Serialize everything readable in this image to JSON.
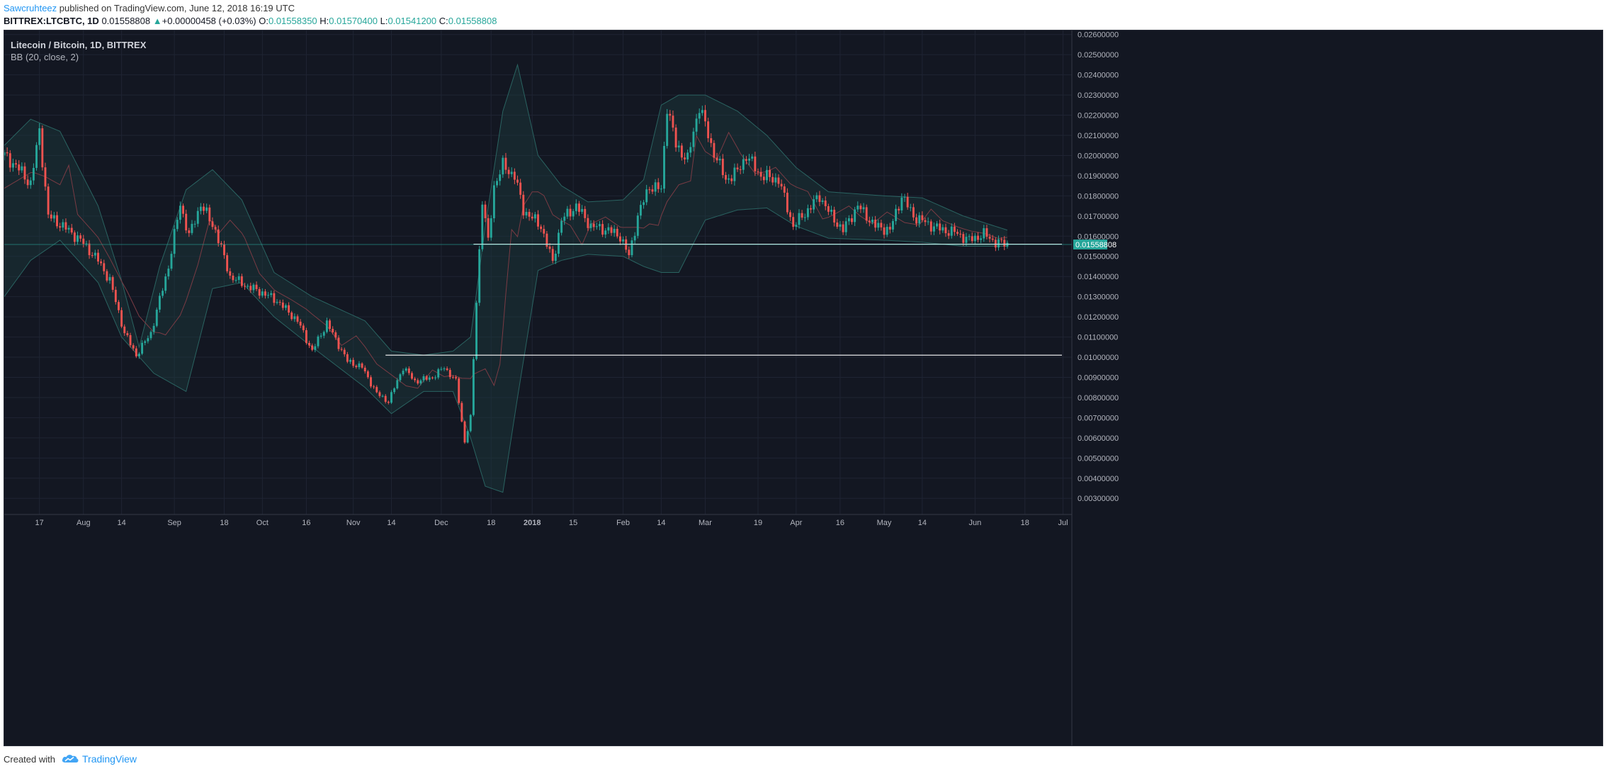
{
  "header": {
    "author": "Sawcruhteez",
    "published_text": "published on TradingView.com, June 12, 2018 16:19 UTC",
    "symbol": "BITTREX:LTCBTC, 1D",
    "last": "0.01558808",
    "change_arrow": "▲",
    "change": "+0.00000458 (+0.03%)",
    "o_label": "O:",
    "o_value": "0.01558350",
    "h_label": "H:",
    "h_value": "0.01570400",
    "l_label": "L:",
    "l_value": "0.01541200",
    "c_label": "C:",
    "c_value": "0.01558808"
  },
  "legend": {
    "title": "Litecoin / Bitcoin, 1D, BITTREX",
    "indicator": "BB (20, close, 2)"
  },
  "footer": {
    "created_with": "Created with",
    "brand": "TradingView",
    "logo_icon": "tradingview-cloud-icon"
  },
  "colors": {
    "background": "#131722",
    "grid": "#1f2433",
    "up": "#26a69a",
    "down": "#ef5350",
    "bb_fill": "#1c3b3d",
    "bb_band": "#2a6361",
    "bb_basis": "#7a3b44",
    "price_label": "#26a69a",
    "level_line": "#ffffff"
  },
  "chart_data": {
    "type": "candlestick",
    "y_axis": {
      "min": 0.0022,
      "max": 0.0262,
      "ticks": [
        "0.02600000",
        "0.02500000",
        "0.02400000",
        "0.02300000",
        "0.02200000",
        "0.02100000",
        "0.02000000",
        "0.01900000",
        "0.01800000",
        "0.01700000",
        "0.01600000",
        "0.01500000",
        "0.01400000",
        "0.01300000",
        "0.01200000",
        "0.01100000",
        "0.01000000",
        "0.00900000",
        "0.00800000",
        "0.00700000",
        "0.00600000",
        "0.00500000",
        "0.00400000",
        "0.00300000"
      ],
      "tick_values": [
        0.026,
        0.025,
        0.024,
        0.023,
        0.022,
        0.021,
        0.02,
        0.019,
        0.018,
        0.017,
        0.016,
        0.015,
        0.014,
        0.013,
        0.012,
        0.011,
        0.01,
        0.009,
        0.008,
        0.007,
        0.006,
        0.005,
        0.004,
        0.003
      ],
      "position": "right"
    },
    "x_axis": {
      "start_date": "2017-07-05",
      "end_date": "2018-07-04",
      "tick_labels": [
        "17",
        "Aug",
        "14",
        "Sep",
        "18",
        "Oct",
        "16",
        "Nov",
        "14",
        "Dec",
        "18",
        "2018",
        "15",
        "Feb",
        "14",
        "Mar",
        "19",
        "Apr",
        "16",
        "May",
        "14",
        "Jun",
        "18",
        "Jul"
      ],
      "tick_dates": [
        "2017-07-17",
        "2017-08-01",
        "2017-08-14",
        "2017-09-01",
        "2017-09-18",
        "2017-10-01",
        "2017-10-16",
        "2017-11-01",
        "2017-11-14",
        "2017-12-01",
        "2017-12-18",
        "2018-01-01",
        "2018-01-15",
        "2018-02-01",
        "2018-02-14",
        "2018-03-01",
        "2018-03-19",
        "2018-04-01",
        "2018-04-16",
        "2018-05-01",
        "2018-05-14",
        "2018-06-01",
        "2018-06-18",
        "2018-07-01"
      ],
      "bold_labels": [
        "2018"
      ]
    },
    "grid": true,
    "last_price": 0.01558808,
    "last_price_label": "0.01558808",
    "last_date": "2018-06-12",
    "horizontal_levels": [
      {
        "value": 0.0156,
        "from": "2017-12-12",
        "to": "2018-07-04"
      },
      {
        "value": 0.0101,
        "from": "2017-11-12",
        "to": "2018-07-04"
      }
    ],
    "indicator": {
      "name": "BB",
      "period": 20,
      "source": "close",
      "stddev": 2,
      "upper_keyframes": [
        [
          "2017-07-05",
          0.0205
        ],
        [
          "2017-07-14",
          0.0218
        ],
        [
          "2017-07-24",
          0.0212
        ],
        [
          "2017-08-06",
          0.0175
        ],
        [
          "2017-08-14",
          0.0138
        ],
        [
          "2017-08-20",
          0.0105
        ],
        [
          "2017-08-27",
          0.0145
        ],
        [
          "2017-09-05",
          0.0183
        ],
        [
          "2017-09-14",
          0.0193
        ],
        [
          "2017-09-24",
          0.0178
        ],
        [
          "2017-10-05",
          0.0142
        ],
        [
          "2017-10-18",
          0.013
        ],
        [
          "2017-11-05",
          0.0118
        ],
        [
          "2017-11-14",
          0.0103
        ],
        [
          "2017-11-25",
          0.0101
        ],
        [
          "2017-12-05",
          0.0103
        ],
        [
          "2017-12-11",
          0.011
        ],
        [
          "2017-12-16",
          0.0165
        ],
        [
          "2017-12-22",
          0.0222
        ],
        [
          "2017-12-27",
          0.0245
        ],
        [
          "2018-01-03",
          0.02
        ],
        [
          "2018-01-11",
          0.0185
        ],
        [
          "2018-01-20",
          0.0177
        ],
        [
          "2018-02-01",
          0.0178
        ],
        [
          "2018-02-08",
          0.0188
        ],
        [
          "2018-02-14",
          0.0225
        ],
        [
          "2018-02-20",
          0.023
        ],
        [
          "2018-03-01",
          0.023
        ],
        [
          "2018-03-12",
          0.0222
        ],
        [
          "2018-03-22",
          0.021
        ],
        [
          "2018-04-01",
          0.0194
        ],
        [
          "2018-04-12",
          0.0182
        ],
        [
          "2018-05-01",
          0.018
        ],
        [
          "2018-05-14",
          0.0179
        ],
        [
          "2018-05-28",
          0.017
        ],
        [
          "2018-06-12",
          0.0163
        ]
      ],
      "lower_keyframes": [
        [
          "2017-07-05",
          0.013
        ],
        [
          "2017-07-14",
          0.0148
        ],
        [
          "2017-07-24",
          0.0158
        ],
        [
          "2017-08-06",
          0.0137
        ],
        [
          "2017-08-14",
          0.011
        ],
        [
          "2017-08-25",
          0.0092
        ],
        [
          "2017-09-05",
          0.0083
        ],
        [
          "2017-09-14",
          0.0134
        ],
        [
          "2017-09-24",
          0.0137
        ],
        [
          "2017-10-05",
          0.012
        ],
        [
          "2017-10-18",
          0.0105
        ],
        [
          "2017-11-05",
          0.0085
        ],
        [
          "2017-11-14",
          0.0072
        ],
        [
          "2017-11-25",
          0.0083
        ],
        [
          "2017-12-05",
          0.0083
        ],
        [
          "2017-12-11",
          0.006
        ],
        [
          "2017-12-16",
          0.0036
        ],
        [
          "2017-12-22",
          0.0033
        ],
        [
          "2017-12-27",
          0.008
        ],
        [
          "2018-01-03",
          0.0143
        ],
        [
          "2018-01-11",
          0.0148
        ],
        [
          "2018-01-20",
          0.0151
        ],
        [
          "2018-02-01",
          0.015
        ],
        [
          "2018-02-08",
          0.0145
        ],
        [
          "2018-02-14",
          0.0142
        ],
        [
          "2018-02-20",
          0.0142
        ],
        [
          "2018-03-01",
          0.0168
        ],
        [
          "2018-03-12",
          0.0173
        ],
        [
          "2018-03-22",
          0.0174
        ],
        [
          "2018-04-01",
          0.0165
        ],
        [
          "2018-04-12",
          0.0159
        ],
        [
          "2018-05-01",
          0.0158
        ],
        [
          "2018-05-14",
          0.0157
        ],
        [
          "2018-05-28",
          0.0155
        ],
        [
          "2018-06-12",
          0.0155
        ]
      ]
    },
    "close_keyframes": [
      [
        "2017-07-05",
        0.02
      ],
      [
        "2017-07-09",
        0.0195
      ],
      [
        "2017-07-14",
        0.0186
      ],
      [
        "2017-07-17",
        0.0212
      ],
      [
        "2017-07-20",
        0.017
      ],
      [
        "2017-07-25",
        0.0165
      ],
      [
        "2017-07-31",
        0.0158
      ],
      [
        "2017-08-06",
        0.0148
      ],
      [
        "2017-08-10",
        0.0138
      ],
      [
        "2017-08-15",
        0.0112
      ],
      [
        "2017-08-19",
        0.0101
      ],
      [
        "2017-08-24",
        0.0112
      ],
      [
        "2017-08-30",
        0.0145
      ],
      [
        "2017-09-03",
        0.0176
      ],
      [
        "2017-09-06",
        0.016
      ],
      [
        "2017-09-10",
        0.0176
      ],
      [
        "2017-09-15",
        0.0163
      ],
      [
        "2017-09-20",
        0.014
      ],
      [
        "2017-09-26",
        0.0135
      ],
      [
        "2017-10-01",
        0.0132
      ],
      [
        "2017-10-06",
        0.0128
      ],
      [
        "2017-10-13",
        0.0118
      ],
      [
        "2017-10-18",
        0.0103
      ],
      [
        "2017-10-23",
        0.0117
      ],
      [
        "2017-10-30",
        0.0098
      ],
      [
        "2017-11-04",
        0.0095
      ],
      [
        "2017-11-09",
        0.0082
      ],
      [
        "2017-11-13",
        0.0078
      ],
      [
        "2017-11-18",
        0.0095
      ],
      [
        "2017-11-22",
        0.0088
      ],
      [
        "2017-11-28",
        0.009
      ],
      [
        "2017-12-02",
        0.0095
      ],
      [
        "2017-12-06",
        0.0088
      ],
      [
        "2017-12-09",
        0.0058
      ],
      [
        "2017-12-11",
        0.007
      ],
      [
        "2017-12-13",
        0.0128
      ],
      [
        "2017-12-15",
        0.0178
      ],
      [
        "2017-12-17",
        0.0157
      ],
      [
        "2017-12-19",
        0.0185
      ],
      [
        "2017-12-22",
        0.0195
      ],
      [
        "2017-12-26",
        0.019
      ],
      [
        "2017-12-29",
        0.0173
      ],
      [
        "2018-01-04",
        0.0165
      ],
      [
        "2018-01-08",
        0.0147
      ],
      [
        "2018-01-11",
        0.0168
      ],
      [
        "2018-01-16",
        0.0175
      ],
      [
        "2018-01-21",
        0.0165
      ],
      [
        "2018-01-27",
        0.0163
      ],
      [
        "2018-01-31",
        0.016
      ],
      [
        "2018-02-03",
        0.015
      ],
      [
        "2018-02-06",
        0.017
      ],
      [
        "2018-02-10",
        0.0185
      ],
      [
        "2018-02-14",
        0.0183
      ],
      [
        "2018-02-16",
        0.0225
      ],
      [
        "2018-02-19",
        0.0205
      ],
      [
        "2018-02-23",
        0.0198
      ],
      [
        "2018-02-27",
        0.0225
      ],
      [
        "2018-03-03",
        0.0205
      ],
      [
        "2018-03-08",
        0.0188
      ],
      [
        "2018-03-12",
        0.0192
      ],
      [
        "2018-03-15",
        0.02
      ],
      [
        "2018-03-20",
        0.019
      ],
      [
        "2018-03-26",
        0.0188
      ],
      [
        "2018-03-31",
        0.0165
      ],
      [
        "2018-04-05",
        0.0173
      ],
      [
        "2018-04-09",
        0.018
      ],
      [
        "2018-04-13",
        0.017
      ],
      [
        "2018-04-17",
        0.0163
      ],
      [
        "2018-04-22",
        0.0175
      ],
      [
        "2018-04-28",
        0.0165
      ],
      [
        "2018-05-03",
        0.0163
      ],
      [
        "2018-05-07",
        0.018
      ],
      [
        "2018-05-11",
        0.017
      ],
      [
        "2018-05-16",
        0.0166
      ],
      [
        "2018-05-21",
        0.0163
      ],
      [
        "2018-05-25",
        0.0162
      ],
      [
        "2018-05-30",
        0.0158
      ],
      [
        "2018-06-04",
        0.0161
      ],
      [
        "2018-06-08",
        0.0157
      ],
      [
        "2018-06-12",
        0.0156
      ]
    ]
  }
}
